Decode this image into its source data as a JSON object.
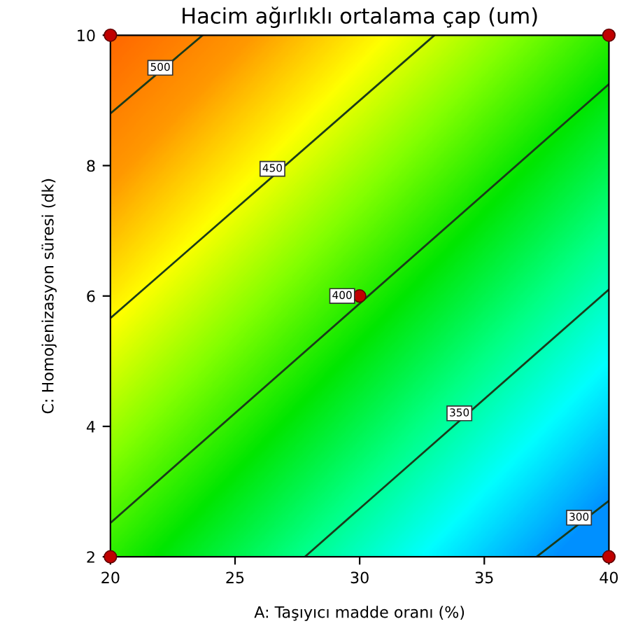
{
  "chart_data": {
    "type": "line",
    "title": "Hacim ağırlıklı ortalama çap (um)",
    "xlabel": "A: Taşıyıcı madde oranı (%)",
    "ylabel": "C: Homojenizasyon süresi (dk)",
    "xlim": [
      20,
      40
    ],
    "ylim": [
      2,
      10
    ],
    "xticks": [
      20,
      25,
      30,
      35,
      40
    ],
    "yticks": [
      2,
      4,
      6,
      8,
      10
    ],
    "grid": false,
    "legend": false,
    "marker": "none",
    "line_style": "solid",
    "series": [
      {
        "color": "#1a3a1a",
        "x": [
          20,
          23.7
        ],
        "values": [
          8.8,
          10
        ]
      },
      {
        "color": "#1a3a1a",
        "x": [
          20,
          33.0
        ],
        "values": [
          5.66,
          10
        ]
      },
      {
        "color": "#1a3a1a",
        "x": [
          20,
          40
        ],
        "values": [
          2.52,
          9.25
        ]
      },
      {
        "color": "#1a3a1a",
        "x": [
          27.8,
          40
        ],
        "values": [
          2,
          6.1
        ]
      },
      {
        "color": "#1a3a1a",
        "x": [
          37.1,
          40
        ],
        "values": [
          2,
          2.86
        ]
      },
      {
        "type": "scatter",
        "marker": "circle",
        "color": "#c00000",
        "x": [
          20,
          20,
          40,
          40,
          30
        ],
        "values": [
          2,
          10,
          2,
          10,
          6
        ]
      }
    ],
    "annotations": [
      {
        "text": "500",
        "x": 22,
        "y": 9.5
      },
      {
        "text": "450",
        "x": 26.5,
        "y": 7.95
      },
      {
        "text": "400",
        "x": 30,
        "y": 6
      },
      {
        "text": "350",
        "x": 34,
        "y": 4.2
      },
      {
        "text": "300",
        "x": 38.8,
        "y": 2.6
      }
    ]
  }
}
